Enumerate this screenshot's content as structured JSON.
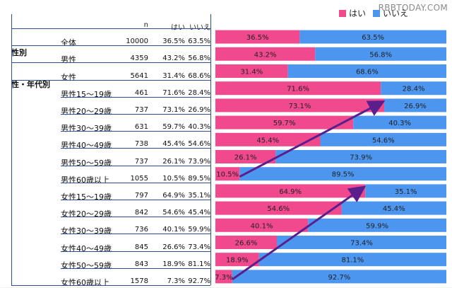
{
  "watermark": "RBBTODAY.COM",
  "legend": {
    "yes": "はい",
    "no": "いいえ"
  },
  "colors": {
    "yes": "#f0498d",
    "no": "#4d96f0",
    "arrow": "#5a1f8c",
    "rule": "#2f4f8f"
  },
  "table": {
    "headers": {
      "n": "n",
      "yes": "はい",
      "no": "いいえ"
    },
    "groups": {
      "gender": "性別",
      "gender_age": "性・年代別"
    },
    "rows": [
      {
        "label": "全体",
        "n": "10000",
        "yes": "36.5%",
        "no": "63.5%"
      },
      {
        "label": "男性",
        "n": "4359",
        "yes": "43.2%",
        "no": "56.8%"
      },
      {
        "label": "女性",
        "n": "5641",
        "yes": "31.4%",
        "no": "68.6%"
      },
      {
        "label": "男性15～19歳",
        "n": "461",
        "yes": "71.6%",
        "no": "28.4%"
      },
      {
        "label": "男性20～29歳",
        "n": "737",
        "yes": "73.1%",
        "no": "26.9%"
      },
      {
        "label": "男性30～39歳",
        "n": "631",
        "yes": "59.7%",
        "no": "40.3%"
      },
      {
        "label": "男性40～49歳",
        "n": "738",
        "yes": "45.4%",
        "no": "54.6%"
      },
      {
        "label": "男性50～59歳",
        "n": "737",
        "yes": "26.1%",
        "no": "73.9%"
      },
      {
        "label": "男性60歳以上",
        "n": "1055",
        "yes": "10.5%",
        "no": "89.5%"
      },
      {
        "label": "女性15～19歳",
        "n": "797",
        "yes": "64.9%",
        "no": "35.1%"
      },
      {
        "label": "女性20～29歳",
        "n": "842",
        "yes": "54.6%",
        "no": "45.4%"
      },
      {
        "label": "女性30～39歳",
        "n": "736",
        "yes": "40.1%",
        "no": "59.9%"
      },
      {
        "label": "女性40～49歳",
        "n": "845",
        "yes": "26.6%",
        "no": "73.4%"
      },
      {
        "label": "女性50～59歳",
        "n": "843",
        "yes": "18.9%",
        "no": "81.1%"
      },
      {
        "label": "女性60歳以上",
        "n": "1578",
        "yes": "7.3%",
        "no": "92.7%"
      }
    ]
  },
  "chart_data": {
    "type": "bar",
    "stacked": true,
    "orientation": "horizontal",
    "categories": [
      "全体",
      "男性",
      "女性",
      "男性15～19歳",
      "男性20～29歳",
      "男性30～39歳",
      "男性40～49歳",
      "男性50～59歳",
      "男性60歳以上",
      "女性15～19歳",
      "女性20～29歳",
      "女性30～39歳",
      "女性40～49歳",
      "女性50～59歳",
      "女性60歳以上"
    ],
    "series": [
      {
        "name": "はい",
        "values": [
          36.5,
          43.2,
          31.4,
          71.6,
          73.1,
          59.7,
          45.4,
          26.1,
          10.5,
          64.9,
          54.6,
          40.1,
          26.6,
          18.9,
          7.3
        ]
      },
      {
        "name": "いいえ",
        "values": [
          63.5,
          56.8,
          68.6,
          28.4,
          26.9,
          40.3,
          54.6,
          73.9,
          89.5,
          35.1,
          45.4,
          59.9,
          73.4,
          81.1,
          92.7
        ]
      }
    ],
    "xlim": [
      0,
      100
    ],
    "legend": "top-right",
    "annotations": [
      {
        "type": "arrow",
        "from_category": "男性60歳以上",
        "to_category": "男性20～29歳",
        "at_series_boundary": true
      },
      {
        "type": "arrow",
        "from_category": "女性60歳以上",
        "to_category": "女性15～19歳",
        "at_series_boundary": true
      }
    ]
  }
}
